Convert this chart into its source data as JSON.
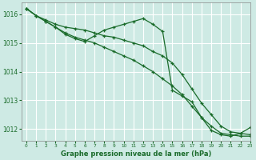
{
  "bg_color": "#ceeae4",
  "grid_color": "#ffffff",
  "line_color": "#1a6b2a",
  "xlabel": "Graphe pression niveau de la mer (hPa)",
  "xlim": [
    -0.5,
    23
  ],
  "ylim": [
    1011.6,
    1016.4
  ],
  "yticks": [
    1012,
    1013,
    1014,
    1015,
    1016
  ],
  "xticks": [
    0,
    1,
    2,
    3,
    4,
    5,
    6,
    7,
    8,
    9,
    10,
    11,
    12,
    13,
    14,
    15,
    16,
    17,
    18,
    19,
    20,
    21,
    22,
    23
  ],
  "series": [
    [
      1016.2,
      1015.95,
      1015.8,
      1015.65,
      1015.55,
      1015.5,
      1015.45,
      1015.35,
      1015.25,
      1015.2,
      1015.1,
      1015.0,
      1014.9,
      1014.7,
      1014.55,
      1014.3,
      1013.9,
      1013.4,
      1012.9,
      1012.5,
      1012.1,
      1011.9,
      1011.85,
      1011.8
    ],
    [
      1016.2,
      1015.95,
      1015.75,
      1015.55,
      1015.35,
      1015.2,
      1015.1,
      1015.0,
      1014.85,
      1014.7,
      1014.55,
      1014.4,
      1014.2,
      1014.0,
      1013.75,
      1013.5,
      1013.2,
      1012.8,
      1012.4,
      1012.1,
      1011.85,
      1011.8,
      1011.75,
      1011.75
    ],
    [
      1016.2,
      1015.95,
      1015.75,
      1015.55,
      1015.3,
      1015.15,
      1015.05,
      1015.25,
      1015.45,
      1015.55,
      1015.65,
      1015.75,
      1015.85,
      1015.65,
      1015.4,
      1013.35,
      1013.15,
      1012.95,
      1012.4,
      1011.95,
      1011.8,
      1011.75,
      1011.85,
      1012.05
    ]
  ]
}
